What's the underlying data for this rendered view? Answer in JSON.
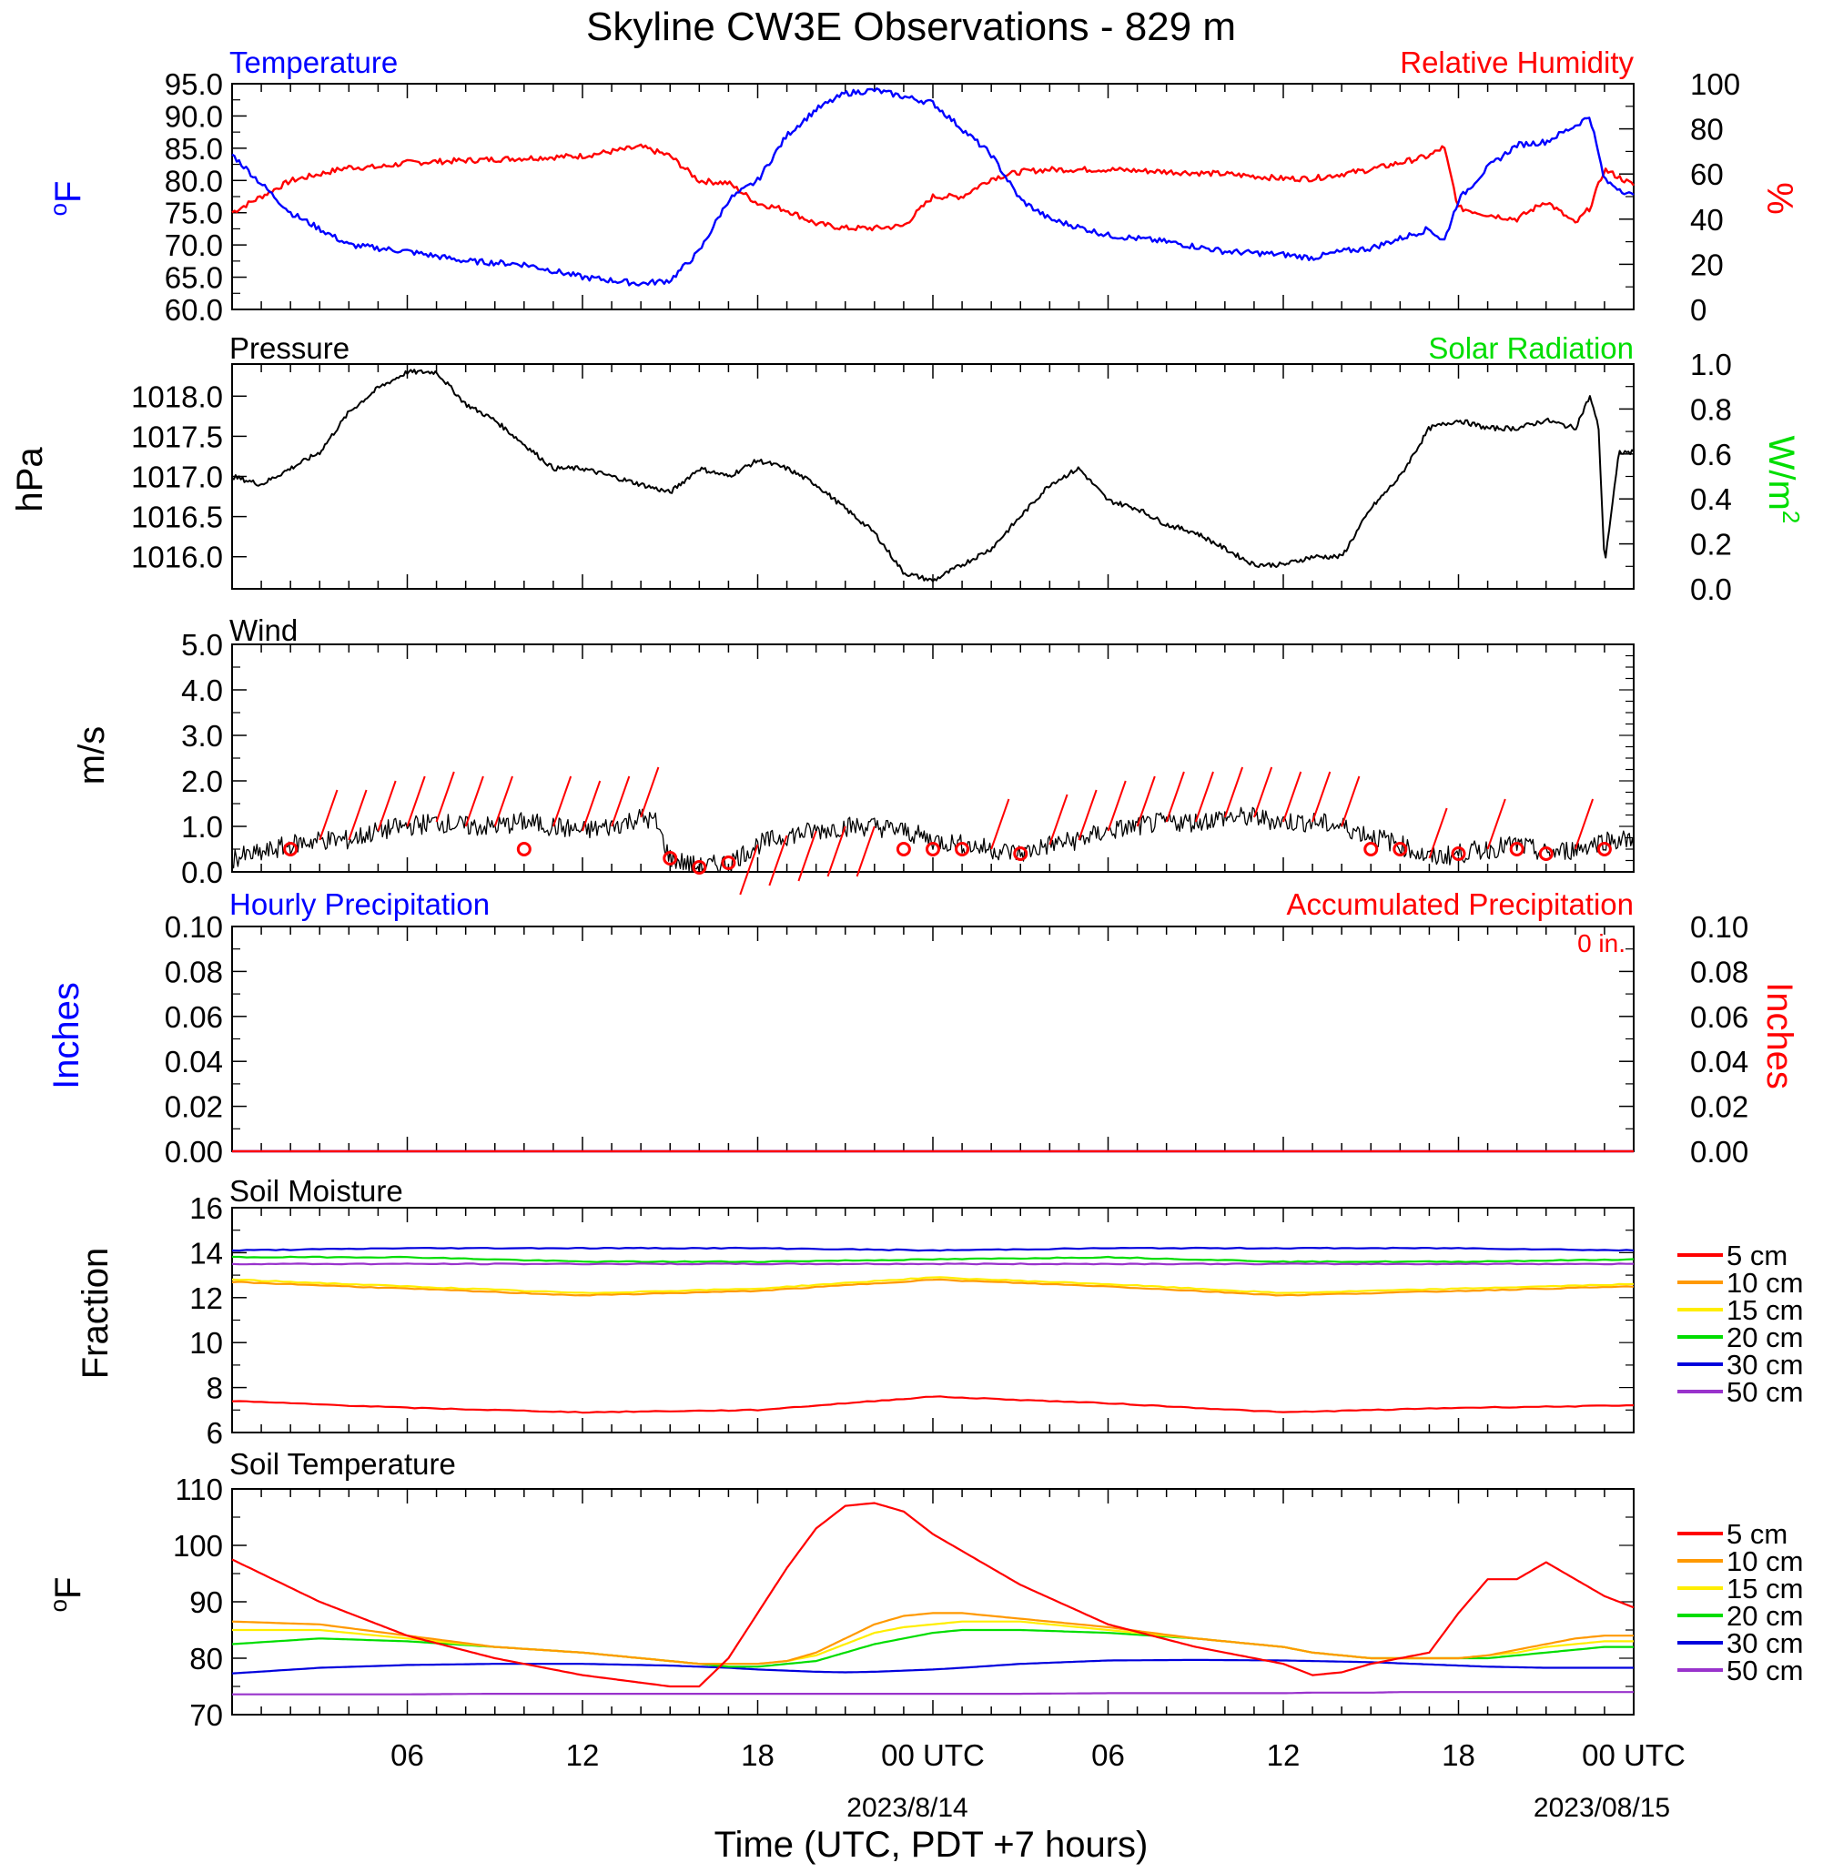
{
  "title": "Skyline CW3E Observations - 829 m",
  "x_axis": {
    "label": "Time (UTC, PDT +7 hours)",
    "ticks": [
      "06",
      "12",
      "18",
      "00 UTC",
      "06",
      "12",
      "18",
      "00 UTC"
    ],
    "dates": [
      "2023/8/14",
      "2023/08/15"
    ]
  },
  "panels": {
    "temp": {
      "left_title": "Temperature",
      "right_title": "Relative Humidity",
      "left_unit": "oF",
      "right_unit": "%"
    },
    "pres": {
      "left_title": "Pressure",
      "right_title": "Solar Radiation",
      "left_unit": "hPa",
      "right_unit": "W/m2"
    },
    "wind": {
      "left_title": "Wind",
      "left_unit": "m/s"
    },
    "precip": {
      "left_title": "Hourly Precipitation",
      "right_title": "Accumulated Precipitation",
      "left_unit": "Inches",
      "right_unit": "Inches",
      "accum_note": "0 in."
    },
    "soilm": {
      "left_title": "Soil Moisture",
      "left_unit": "Fraction"
    },
    "soilt": {
      "left_title": "Soil Temperature",
      "left_unit": "oF"
    }
  },
  "legend": {
    "entries": [
      {
        "label": "5 cm",
        "color": "#ff0000"
      },
      {
        "label": "10 cm",
        "color": "#ff9900"
      },
      {
        "label": "15 cm",
        "color": "#ffee00"
      },
      {
        "label": "20 cm",
        "color": "#00dd00"
      },
      {
        "label": "30 cm",
        "color": "#0000dd"
      },
      {
        "label": "50 cm",
        "color": "#9933cc"
      }
    ]
  },
  "colors": {
    "blue": "#0000ff",
    "red": "#ff0000",
    "green": "#00dd00",
    "black": "#000000"
  },
  "chart_data": [
    {
      "type": "line",
      "title": "Temperature / Relative Humidity",
      "x_hours": [
        0,
        2,
        4,
        5,
        6,
        8,
        10,
        12,
        14,
        15,
        16,
        17,
        18,
        19,
        20,
        21,
        22,
        23,
        24,
        25,
        26,
        27,
        28,
        30,
        32,
        34,
        36,
        37,
        38,
        39,
        40,
        41,
        41.5,
        42,
        43,
        44,
        45,
        46,
        46.5,
        47,
        48
      ],
      "ylim_left": [
        60,
        95
      ],
      "ylim_right": [
        0,
        100
      ],
      "yticks_left": [
        "60.0",
        "65.0",
        "70.0",
        "75.0",
        "80.0",
        "85.0",
        "90.0",
        "95.0"
      ],
      "yticks_right": [
        "0",
        "20",
        "40",
        "60",
        "80",
        "100"
      ],
      "series": [
        {
          "name": "Temperature",
          "axis": "left",
          "color": "#0000ff",
          "values": [
            84,
            75,
            70,
            69.5,
            69,
            67.5,
            67,
            65,
            64,
            64.5,
            69,
            77,
            80,
            87,
            91,
            93.5,
            94,
            93,
            92,
            88,
            84,
            77,
            74,
            71.5,
            70.5,
            69,
            68.5,
            68,
            69,
            69.5,
            71,
            72.5,
            70.5,
            77,
            82,
            85.5,
            86,
            88.5,
            90,
            80,
            77.5
          ]
        },
        {
          "name": "Relative Humidity",
          "axis": "right",
          "color": "#ff0000",
          "values": [
            43,
            57,
            63,
            63,
            65,
            66,
            67,
            68,
            72,
            68,
            57,
            56,
            47,
            44,
            38,
            36,
            36,
            37,
            50,
            50,
            58,
            61,
            62,
            62,
            61,
            60,
            58,
            58,
            60,
            62,
            65,
            68,
            72,
            45,
            42,
            40,
            48,
            38,
            45,
            62,
            55
          ]
        }
      ]
    },
    {
      "type": "line",
      "title": "Pressure / Solar Radiation",
      "x_hours": [
        0,
        1,
        2,
        3,
        4,
        5,
        6,
        7,
        8,
        9,
        10,
        11,
        12,
        13,
        14,
        15,
        16,
        17,
        18,
        19,
        20,
        21,
        22,
        23,
        24,
        25,
        26,
        27,
        28,
        29,
        30,
        31,
        32,
        33,
        34,
        35,
        36,
        37,
        38,
        39,
        40,
        41,
        42,
        43,
        44,
        45,
        46,
        46.5,
        46.8,
        47,
        47.5,
        48
      ],
      "ylim_left": [
        1015.6,
        1018.4
      ],
      "ylim_right": [
        0,
        1
      ],
      "yticks_left": [
        "1016.0",
        "1016.5",
        "1017.0",
        "1017.5",
        "1018.0"
      ],
      "yticks_right": [
        "0.0",
        "0.2",
        "0.4",
        "0.6",
        "0.8",
        "1.0"
      ],
      "series": [
        {
          "name": "Pressure",
          "axis": "left",
          "color": "#000000",
          "values": [
            1017.0,
            1016.9,
            1017.1,
            1017.3,
            1017.8,
            1018.1,
            1018.3,
            1018.3,
            1017.9,
            1017.7,
            1017.4,
            1017.1,
            1017.1,
            1017.0,
            1016.9,
            1016.8,
            1017.1,
            1017.0,
            1017.2,
            1017.1,
            1016.9,
            1016.6,
            1016.3,
            1015.8,
            1015.7,
            1015.9,
            1016.1,
            1016.5,
            1016.9,
            1017.1,
            1016.7,
            1016.6,
            1016.4,
            1016.3,
            1016.1,
            1015.9,
            1015.9,
            1016.0,
            1016.0,
            1016.6,
            1017.0,
            1017.6,
            1017.7,
            1017.6,
            1017.6,
            1017.7,
            1017.6,
            1018.0,
            1017.6,
            1015.9,
            1017.3,
            1017.3
          ]
        }
      ]
    },
    {
      "type": "line",
      "title": "Wind",
      "x_hours": [
        0,
        1,
        2,
        3,
        4,
        5,
        6,
        7,
        8,
        9,
        10,
        11,
        12,
        13,
        14,
        14.5,
        15,
        16,
        17,
        18,
        19,
        20,
        21,
        22,
        23,
        24,
        25,
        26,
        27,
        28,
        29,
        30,
        31,
        32,
        33,
        34,
        35,
        36,
        37,
        38,
        39,
        40,
        41,
        42,
        43,
        44,
        45,
        46,
        47,
        48
      ],
      "ylim": [
        0,
        5
      ],
      "yticks": [
        "0.0",
        "1.0",
        "2.0",
        "3.0",
        "4.0",
        "5.0"
      ],
      "series": [
        {
          "name": "Wind speed",
          "color": "#000000",
          "values": [
            0.3,
            0.4,
            0.6,
            0.7,
            0.7,
            0.9,
            1.0,
            1.1,
            1.0,
            1.0,
            1.1,
            1.0,
            0.9,
            1.0,
            1.2,
            1.1,
            0.3,
            0.1,
            0.2,
            0.6,
            0.8,
            0.9,
            1.0,
            1.0,
            0.9,
            0.7,
            0.6,
            0.5,
            0.4,
            0.6,
            0.7,
            0.9,
            1.0,
            1.1,
            1.1,
            1.2,
            1.2,
            1.1,
            1.1,
            1.0,
            0.8,
            0.6,
            0.3,
            0.4,
            0.5,
            0.6,
            0.4,
            0.5,
            0.7,
            0.7
          ]
        }
      ],
      "calm_markers_hours": [
        2,
        10,
        15,
        16,
        17,
        23,
        24,
        25,
        27,
        39,
        40,
        42,
        44,
        45,
        47
      ],
      "barb_hours": [
        3,
        4,
        5,
        6,
        7,
        8,
        9,
        11,
        12,
        13,
        14,
        18,
        19,
        20,
        21,
        22,
        26,
        28,
        29,
        30,
        31,
        32,
        33,
        34,
        35,
        36,
        37,
        38,
        41,
        43,
        46
      ]
    },
    {
      "type": "line",
      "title": "Hourly Precipitation / Accumulated Precipitation",
      "x_hours": [
        0,
        48
      ],
      "ylim_left": [
        0,
        0.1
      ],
      "ylim_right": [
        0,
        0.1
      ],
      "yticks_left": [
        "0.00",
        "0.02",
        "0.04",
        "0.06",
        "0.08",
        "0.10"
      ],
      "yticks_right": [
        "0.00",
        "0.02",
        "0.04",
        "0.06",
        "0.08",
        "0.10"
      ],
      "series": [
        {
          "name": "Hourly Precipitation",
          "color": "#0000ff",
          "values": [
            0,
            0
          ]
        },
        {
          "name": "Accumulated Precipitation",
          "color": "#ff0000",
          "values": [
            0,
            0
          ]
        }
      ]
    },
    {
      "type": "line",
      "title": "Soil Moisture",
      "x_hours": [
        0,
        6,
        12,
        18,
        24,
        30,
        36,
        42,
        48
      ],
      "ylim": [
        6,
        16
      ],
      "yticks": [
        "6",
        "8",
        "10",
        "12",
        "14",
        "16"
      ],
      "series": [
        {
          "name": "5 cm",
          "color": "#ff0000",
          "values": [
            7.4,
            7.1,
            6.9,
            7.0,
            7.6,
            7.3,
            6.9,
            7.1,
            7.2
          ]
        },
        {
          "name": "10 cm",
          "color": "#ff9900",
          "values": [
            12.7,
            12.4,
            12.1,
            12.3,
            12.8,
            12.5,
            12.1,
            12.3,
            12.5
          ]
        },
        {
          "name": "15 cm",
          "color": "#ffee00",
          "values": [
            12.8,
            12.5,
            12.2,
            12.4,
            12.9,
            12.6,
            12.2,
            12.4,
            12.6
          ]
        },
        {
          "name": "20 cm",
          "color": "#00dd00",
          "values": [
            13.8,
            13.8,
            13.6,
            13.6,
            13.7,
            13.8,
            13.6,
            13.6,
            13.7
          ]
        },
        {
          "name": "30 cm",
          "color": "#0000dd",
          "values": [
            14.1,
            14.2,
            14.2,
            14.2,
            14.1,
            14.2,
            14.2,
            14.2,
            14.1
          ]
        },
        {
          "name": "50 cm",
          "color": "#9933cc",
          "values": [
            13.5,
            13.5,
            13.5,
            13.5,
            13.5,
            13.5,
            13.5,
            13.5,
            13.5
          ]
        }
      ]
    },
    {
      "type": "line",
      "title": "Soil Temperature",
      "x_hours": [
        0,
        3,
        6,
        9,
        12,
        15,
        16,
        17,
        18,
        19,
        20,
        21,
        22,
        23,
        24,
        25,
        27,
        30,
        33,
        36,
        37,
        38,
        39,
        40,
        41,
        42,
        43,
        44,
        45,
        46,
        47,
        48
      ],
      "ylim": [
        70,
        110
      ],
      "yticks": [
        "70",
        "80",
        "90",
        "100",
        "110"
      ],
      "series": [
        {
          "name": "5 cm",
          "color": "#ff0000",
          "values": [
            97.5,
            90,
            84,
            80,
            77,
            75,
            75,
            80,
            88,
            96,
            103,
            107,
            107.5,
            106,
            102,
            99,
            93,
            86,
            82,
            79,
            77,
            77.5,
            79,
            80,
            81,
            88,
            94,
            94,
            97,
            94,
            91,
            89
          ]
        },
        {
          "name": "10 cm",
          "color": "#ff9900",
          "values": [
            86.5,
            86,
            84,
            82,
            81,
            79.5,
            79,
            79,
            79,
            79.5,
            81,
            83.5,
            86,
            87.5,
            88,
            88,
            87,
            85.5,
            83.5,
            82,
            81,
            80.5,
            80,
            80,
            80,
            80,
            80.5,
            81.5,
            82.5,
            83.5,
            84,
            84
          ]
        },
        {
          "name": "15 cm",
          "color": "#ffee00",
          "values": [
            85,
            85,
            83.5,
            82,
            81,
            79.5,
            79,
            79,
            79,
            79.5,
            80.5,
            82.5,
            84.5,
            85.5,
            86,
            86.5,
            86.5,
            85,
            83.5,
            82,
            81,
            80.5,
            80,
            80,
            80,
            80,
            80.5,
            81,
            82,
            82.5,
            83,
            83
          ]
        },
        {
          "name": "20 cm",
          "color": "#00dd00",
          "values": [
            82.5,
            83.5,
            83,
            82,
            81,
            79.5,
            79,
            78.5,
            78.5,
            79,
            79.5,
            81,
            82.5,
            83.5,
            84.5,
            85,
            85,
            84.5,
            83.5,
            82,
            81,
            80.5,
            80,
            80,
            80,
            80,
            80,
            80.5,
            81,
            81.5,
            82,
            82
          ]
        },
        {
          "name": "30 cm",
          "color": "#0000dd",
          "values": [
            77.3,
            78.3,
            78.8,
            79,
            79,
            78.7,
            78.5,
            78.3,
            78,
            77.8,
            77.6,
            77.5,
            77.6,
            77.8,
            78,
            78.3,
            79,
            79.6,
            79.7,
            79.6,
            79.5,
            79.4,
            79.3,
            79.1,
            78.9,
            78.7,
            78.5,
            78.4,
            78.3,
            78.3,
            78.3,
            78.3
          ]
        },
        {
          "name": "50 cm",
          "color": "#9933cc",
          "values": [
            73.6,
            73.6,
            73.6,
            73.7,
            73.7,
            73.7,
            73.7,
            73.7,
            73.7,
            73.7,
            73.7,
            73.7,
            73.7,
            73.7,
            73.7,
            73.7,
            73.7,
            73.8,
            73.8,
            73.8,
            73.9,
            73.9,
            73.9,
            74,
            74,
            74,
            74,
            74,
            74,
            74,
            74,
            74
          ]
        }
      ]
    }
  ]
}
